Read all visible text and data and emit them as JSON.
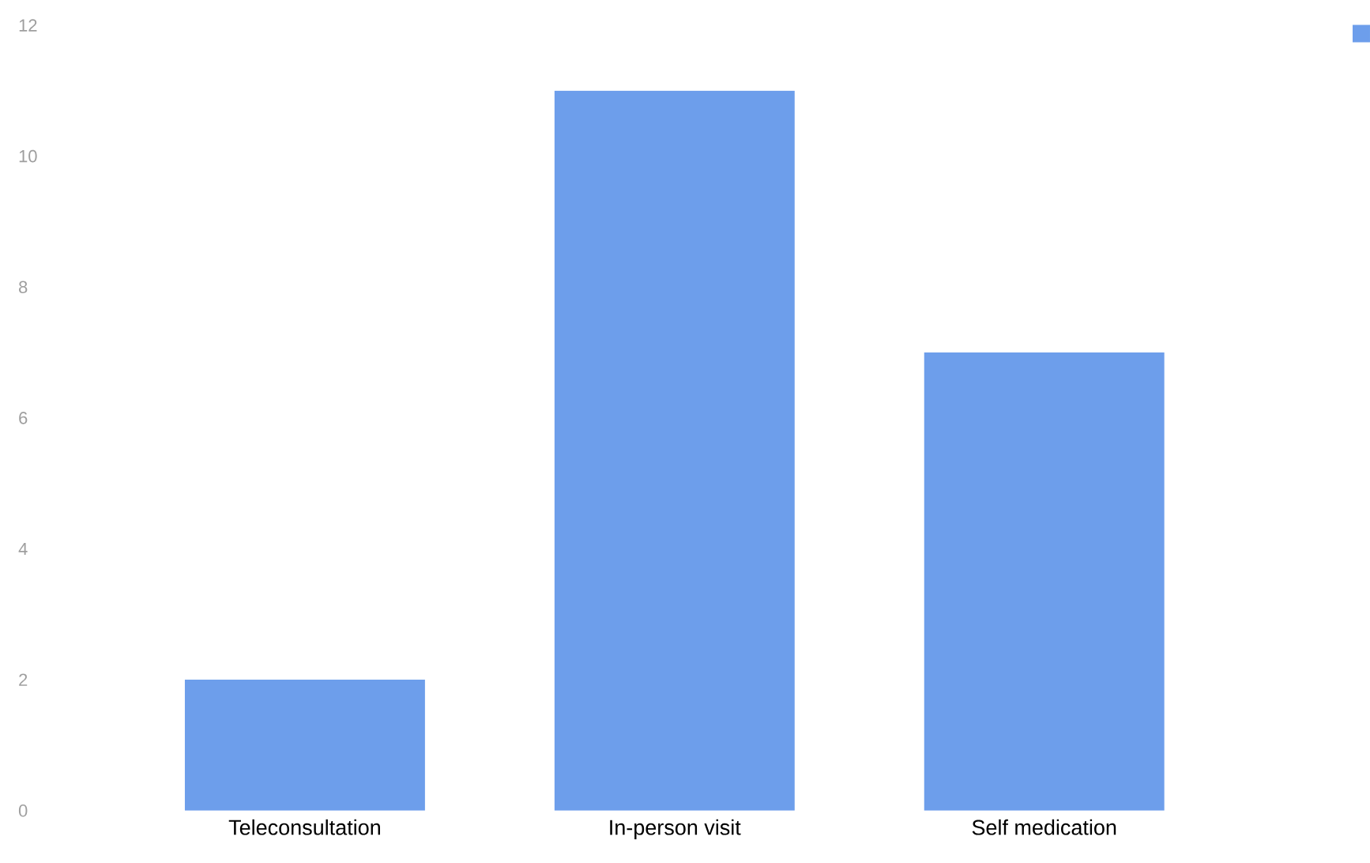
{
  "chart_data": {
    "type": "bar",
    "categories": [
      "Teleconsultation",
      "In-person visit",
      "Self medication"
    ],
    "series": [
      {
        "color": "#6d9eeb",
        "values": [
          2,
          11,
          7
        ]
      }
    ],
    "ylim": [
      0,
      12
    ],
    "yticks": [
      0,
      2,
      4,
      6,
      8,
      10,
      12
    ],
    "grid": false
  }
}
